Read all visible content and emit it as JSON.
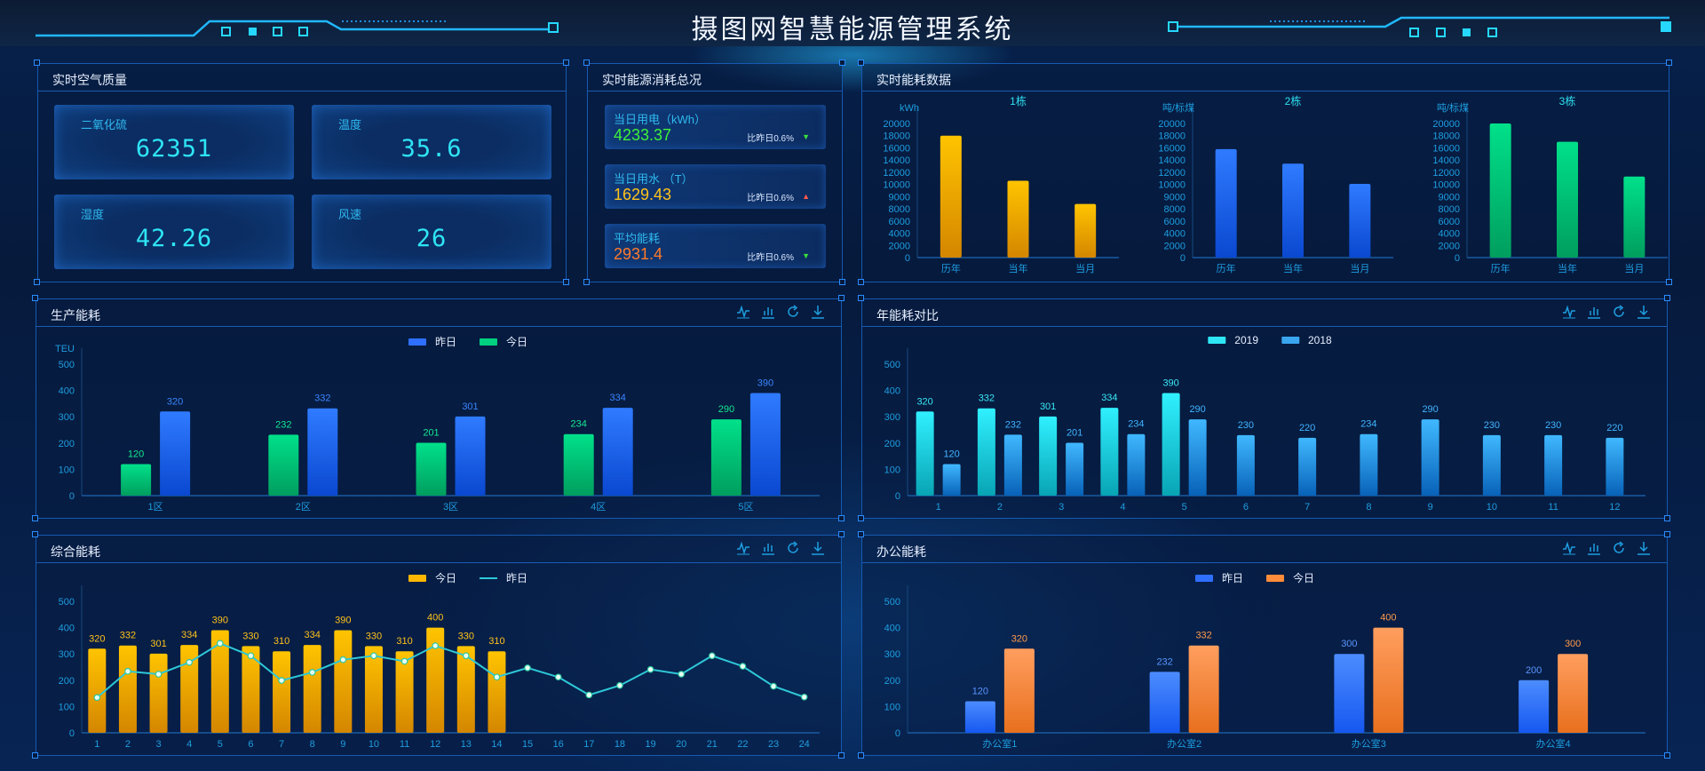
{
  "header": {
    "title": "摄图网智慧能源管理系统"
  },
  "air": {
    "title": "实时空气质量",
    "cards": [
      {
        "label": "二氧化硫",
        "value": "62351"
      },
      {
        "label": "温度",
        "value": "35.6"
      },
      {
        "label": "湿度",
        "value": "42.26"
      },
      {
        "label": "风速",
        "value": "26"
      }
    ]
  },
  "energy_total": {
    "title": "实时能源消耗总况",
    "cards": [
      {
        "label": "当日用电（kWh）",
        "value": "4233.37",
        "compare": "比昨日0.6%",
        "trend": "down",
        "value_color": "#3ef03a",
        "arrow_color": "#39e03a"
      },
      {
        "label": "当日用水 （T）",
        "value": "1629.43",
        "compare": "比昨日0.6%",
        "trend": "up",
        "value_color": "#ffc21a",
        "arrow_color": "#ff5a4a"
      },
      {
        "label": "平均能耗",
        "value": "2931.4",
        "compare": "比昨日0.6%",
        "trend": "down",
        "value_color": "#ff7a2a",
        "arrow_color": "#39e03a"
      }
    ]
  },
  "toolbar_icons": [
    "line-chart-icon",
    "bar-chart-icon",
    "refresh-icon",
    "download-icon"
  ],
  "colors": {
    "accent": "#2b8cff",
    "axis_text": "#1e9ee0",
    "panel_border": "#1659b0"
  },
  "chart_data": [
    {
      "id": "realtime",
      "title": "实时能耗数据",
      "type": "bar",
      "yticks": [
        0,
        2000,
        4000,
        6000,
        8000,
        9000,
        10000,
        12000,
        14000,
        16000,
        18000,
        20000
      ],
      "subcharts": [
        {
          "title": "1栋",
          "ylabel": "kWh",
          "categories": [
            "历年",
            "当年",
            "当月"
          ],
          "values": [
            18000,
            10600,
            8400
          ],
          "color": [
            "#ffc400",
            "#d48600"
          ]
        },
        {
          "title": "2栋",
          "ylabel": "吨/标煤",
          "categories": [
            "历年",
            "当年",
            "当月"
          ],
          "values": [
            15800,
            13400,
            10100
          ],
          "color": [
            "#2f7bff",
            "#0a48d0"
          ]
        },
        {
          "title": "3栋",
          "ylabel": "吨/标煤",
          "categories": [
            "历年",
            "当年",
            "当月"
          ],
          "values": [
            20000,
            17000,
            11300
          ],
          "color": [
            "#00e08a",
            "#009e5e"
          ]
        }
      ]
    },
    {
      "id": "production",
      "title": "生产能耗",
      "type": "bar",
      "ylabel": "TEU",
      "ylim": [
        0,
        500
      ],
      "yticks": [
        0,
        100,
        200,
        300,
        400,
        500
      ],
      "categories": [
        "1区",
        "2区",
        "3区",
        "4区",
        "5区"
      ],
      "legend": [
        {
          "name": "昨日",
          "color": "#2f6fff"
        },
        {
          "name": "今日",
          "color": "#00d080"
        }
      ],
      "series": [
        {
          "name": "今日",
          "type": "bar",
          "values": [
            120,
            232,
            201,
            234,
            290
          ],
          "color": [
            "#00e08a",
            "#009e5e"
          ],
          "label_color": "#14e890"
        },
        {
          "name": "昨日",
          "type": "bar",
          "values": [
            320,
            332,
            301,
            334,
            390
          ],
          "color": [
            "#2f7bff",
            "#0a48d0"
          ],
          "label_color": "#3a86ff"
        }
      ]
    },
    {
      "id": "yearly",
      "title": "年能耗对比",
      "type": "bar",
      "ylim": [
        0,
        500
      ],
      "yticks": [
        0,
        100,
        200,
        300,
        400,
        500
      ],
      "categories": [
        "1",
        "2",
        "3",
        "4",
        "5",
        "6",
        "7",
        "8",
        "9",
        "10",
        "11",
        "12"
      ],
      "legend": [
        {
          "name": "2019",
          "color": "#2ee6f4"
        },
        {
          "name": "2018",
          "color": "#3aa6f0"
        }
      ],
      "series": [
        {
          "name": "2019",
          "type": "bar",
          "values": [
            320,
            332,
            301,
            334,
            390,
            null,
            null,
            null,
            null,
            null,
            null,
            null
          ],
          "color": [
            "#30f0ff",
            "#08a4b4"
          ],
          "label_color": "#3ae8f6"
        },
        {
          "name": "2018",
          "type": "bar",
          "values": [
            120,
            232,
            201,
            234,
            290,
            230,
            220,
            234,
            290,
            230,
            230,
            220
          ],
          "color": [
            "#40b8ff",
            "#0862b8"
          ],
          "label_color": "#40b4ff"
        }
      ]
    },
    {
      "id": "comprehensive",
      "title": "综合能耗",
      "type": "bar+line",
      "ylim": [
        0,
        500
      ],
      "yticks": [
        0,
        100,
        200,
        300,
        400,
        500
      ],
      "categories": [
        "1",
        "2",
        "3",
        "4",
        "5",
        "6",
        "7",
        "8",
        "9",
        "10",
        "11",
        "12",
        "13",
        "14",
        "15",
        "16",
        "17",
        "18",
        "19",
        "20",
        "21",
        "22",
        "23",
        "24"
      ],
      "legend": [
        {
          "name": "今日",
          "color": "#ffb800",
          "kind": "bar"
        },
        {
          "name": "昨日",
          "color": "#2ec8d8",
          "kind": "line"
        }
      ],
      "series": [
        {
          "name": "今日",
          "type": "bar",
          "values": [
            320,
            332,
            301,
            334,
            390,
            330,
            310,
            334,
            390,
            330,
            310,
            400,
            330,
            310,
            null,
            null,
            null,
            null,
            null,
            null,
            null,
            null,
            null,
            null
          ],
          "color": [
            "#ffc400",
            "#d48600"
          ],
          "label_color": "#ffc21a"
        },
        {
          "name": "昨日",
          "type": "line",
          "values": [
            134,
            234,
            223,
            268,
            340,
            293,
            199,
            230,
            278,
            293,
            272,
            331,
            293,
            212,
            247,
            212,
            144,
            180,
            241,
            223,
            293,
            253,
            177,
            136
          ],
          "color": "#2ec8d8"
        }
      ]
    },
    {
      "id": "office",
      "title": "办公能耗",
      "type": "bar",
      "ylim": [
        0,
        500
      ],
      "yticks": [
        0,
        100,
        200,
        300,
        400,
        500
      ],
      "categories": [
        "办公室1",
        "办公室2",
        "办公室3",
        "办公室4"
      ],
      "legend": [
        {
          "name": "昨日",
          "color": "#2f6fff"
        },
        {
          "name": "今日",
          "color": "#ff8c3a"
        }
      ],
      "series": [
        {
          "name": "昨日",
          "type": "bar",
          "values": [
            120,
            232,
            300,
            200
          ],
          "color": [
            "#4c8cff",
            "#1658f0"
          ],
          "label_color": "#5a96ff"
        },
        {
          "name": "今日",
          "type": "bar",
          "values": [
            320,
            332,
            400,
            300
          ],
          "color": [
            "#ff9e5e",
            "#e8701e"
          ],
          "label_color": "#ff9a4a"
        }
      ]
    }
  ]
}
